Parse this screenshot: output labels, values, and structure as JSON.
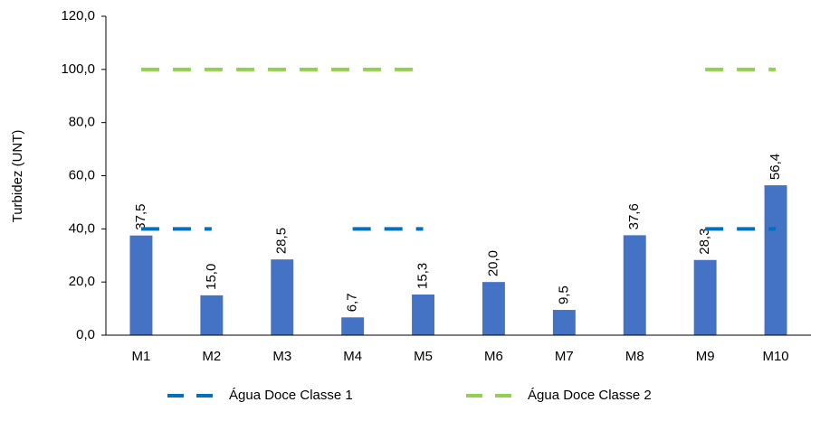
{
  "chart_data": {
    "type": "bar",
    "y_label": "Turbidez (UNT)",
    "categories": [
      "M1",
      "M2",
      "M3",
      "M4",
      "M5",
      "M6",
      "M7",
      "M8",
      "M9",
      "M10"
    ],
    "values": [
      37.5,
      15.0,
      28.5,
      6.7,
      15.3,
      20.0,
      9.5,
      37.6,
      28.3,
      56.4
    ],
    "value_labels": [
      "37,5",
      "15,0",
      "28,5",
      "6,7",
      "15,3",
      "20,0",
      "9,5",
      "37,6",
      "28,3",
      "56,4"
    ],
    "color": "#4472c4",
    "lines": [
      {
        "name": "Água Doce Classe 1",
        "color": "#0070c0",
        "values": [
          40,
          40,
          null,
          40,
          40,
          null,
          null,
          null,
          40,
          40
        ]
      },
      {
        "name": "Água Doce Classe 2",
        "color": "#92d050",
        "values": [
          100,
          100,
          100,
          100,
          100,
          null,
          null,
          null,
          100,
          100
        ]
      }
    ],
    "ylim": [
      0,
      120
    ],
    "yticks": [
      {
        "value": 0,
        "label": "0,0"
      },
      {
        "value": 20,
        "label": "20,0"
      },
      {
        "value": 40,
        "label": "40,0"
      },
      {
        "value": 60,
        "label": "60,0"
      },
      {
        "value": 80,
        "label": "80,0"
      },
      {
        "value": 100,
        "label": "100,0"
      },
      {
        "value": 120,
        "label": "120,0"
      }
    ],
    "legend": "bottom"
  }
}
